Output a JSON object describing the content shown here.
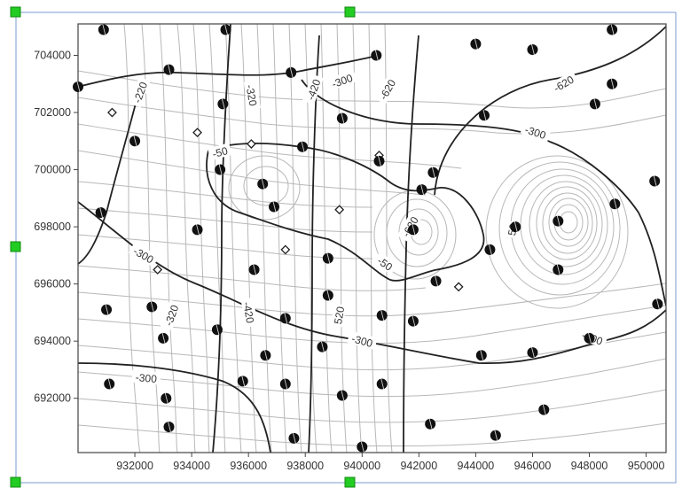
{
  "chart_data": {
    "type": "contour",
    "title": "",
    "xlabel": "",
    "ylabel": "",
    "xlim": [
      930000,
      950700
    ],
    "ylim": [
      690100,
      705100
    ],
    "x_ticks": [
      {
        "value": 932000,
        "label": "932000"
      },
      {
        "value": 934000,
        "label": "934000"
      },
      {
        "value": 936000,
        "label": "936000"
      },
      {
        "value": 938000,
        "label": "938000"
      },
      {
        "value": 940000,
        "label": "940000"
      },
      {
        "value": 942000,
        "label": "942000"
      },
      {
        "value": 944000,
        "label": "944000"
      },
      {
        "value": 946000,
        "label": "946000"
      },
      {
        "value": 948000,
        "label": "948000"
      },
      {
        "value": 950000,
        "label": "950000"
      }
    ],
    "y_ticks": [
      {
        "value": 692000,
        "label": "692000"
      },
      {
        "value": 694000,
        "label": "694000"
      },
      {
        "value": 696000,
        "label": "696000"
      },
      {
        "value": 698000,
        "label": "698000"
      },
      {
        "value": 700000,
        "label": "700000"
      },
      {
        "value": 702000,
        "label": "702000"
      },
      {
        "value": 704000,
        "label": "704000"
      }
    ],
    "contour_labels": [
      {
        "text": "-220",
        "x": 932200,
        "y": 702700,
        "angle": -70
      },
      {
        "text": "-320",
        "x": 936100,
        "y": 702600,
        "angle": 80
      },
      {
        "text": "-420",
        "x": 938300,
        "y": 702800,
        "angle": -70
      },
      {
        "text": "-300",
        "x": 939300,
        "y": 703100,
        "angle": -20
      },
      {
        "text": "-620",
        "x": 940900,
        "y": 702800,
        "angle": -60
      },
      {
        "text": "-620",
        "x": 947100,
        "y": 703000,
        "angle": -30
      },
      {
        "text": "-300",
        "x": 946100,
        "y": 701300,
        "angle": 18
      },
      {
        "text": "-50",
        "x": 935000,
        "y": 700600,
        "angle": -15
      },
      {
        "text": "-300",
        "x": 932300,
        "y": 697000,
        "angle": 30
      },
      {
        "text": "-320",
        "x": 933300,
        "y": 694900,
        "angle": -70
      },
      {
        "text": "-420",
        "x": 936000,
        "y": 695000,
        "angle": 80
      },
      {
        "text": "520",
        "x": 939200,
        "y": 694900,
        "angle": -80
      },
      {
        "text": "-50",
        "x": 940800,
        "y": 696700,
        "angle": 35
      },
      {
        "text": "-620",
        "x": 941700,
        "y": 698000,
        "angle": -60
      },
      {
        "text": "-300",
        "x": 940000,
        "y": 694000,
        "angle": 15
      },
      {
        "text": "-300",
        "x": 932400,
        "y": 692700,
        "angle": 5
      },
      {
        "text": "-300",
        "x": 948100,
        "y": 694100,
        "angle": 20
      },
      {
        "text": "50",
        "x": 945300,
        "y": 697900,
        "angle": -80
      }
    ],
    "wells": [
      {
        "x": 930900,
        "y": 704900
      },
      {
        "x": 935200,
        "y": 704900
      },
      {
        "x": 933200,
        "y": 703500
      },
      {
        "x": 930000,
        "y": 702900
      },
      {
        "x": 935100,
        "y": 702300
      },
      {
        "x": 932000,
        "y": 701000
      },
      {
        "x": 937500,
        "y": 703400
      },
      {
        "x": 939300,
        "y": 701800
      },
      {
        "x": 940500,
        "y": 704000
      },
      {
        "x": 944000,
        "y": 704400
      },
      {
        "x": 946000,
        "y": 704200
      },
      {
        "x": 948800,
        "y": 704900
      },
      {
        "x": 944300,
        "y": 701900
      },
      {
        "x": 948200,
        "y": 702300
      },
      {
        "x": 948800,
        "y": 703000
      },
      {
        "x": 935000,
        "y": 700000
      },
      {
        "x": 937900,
        "y": 700800
      },
      {
        "x": 936500,
        "y": 699500
      },
      {
        "x": 936900,
        "y": 698700
      },
      {
        "x": 940600,
        "y": 700300
      },
      {
        "x": 942100,
        "y": 699300
      },
      {
        "x": 942500,
        "y": 699900
      },
      {
        "x": 930800,
        "y": 698500
      },
      {
        "x": 934200,
        "y": 697900
      },
      {
        "x": 941800,
        "y": 697900
      },
      {
        "x": 944500,
        "y": 697200
      },
      {
        "x": 945400,
        "y": 698000
      },
      {
        "x": 946900,
        "y": 698200
      },
      {
        "x": 948900,
        "y": 698800
      },
      {
        "x": 950300,
        "y": 699600
      },
      {
        "x": 936200,
        "y": 696500
      },
      {
        "x": 938800,
        "y": 696900
      },
      {
        "x": 938800,
        "y": 695600
      },
      {
        "x": 940700,
        "y": 694900
      },
      {
        "x": 941800,
        "y": 694700
      },
      {
        "x": 942600,
        "y": 696100
      },
      {
        "x": 946900,
        "y": 696500
      },
      {
        "x": 931000,
        "y": 695100
      },
      {
        "x": 932600,
        "y": 695200
      },
      {
        "x": 933000,
        "y": 694100
      },
      {
        "x": 934900,
        "y": 694400
      },
      {
        "x": 937300,
        "y": 694800
      },
      {
        "x": 938600,
        "y": 693800
      },
      {
        "x": 944200,
        "y": 693500
      },
      {
        "x": 946000,
        "y": 693600
      },
      {
        "x": 948000,
        "y": 694100
      },
      {
        "x": 950400,
        "y": 695300
      },
      {
        "x": 931100,
        "y": 692500
      },
      {
        "x": 933100,
        "y": 692000
      },
      {
        "x": 936600,
        "y": 693500
      },
      {
        "x": 935800,
        "y": 692600
      },
      {
        "x": 937300,
        "y": 692500
      },
      {
        "x": 939300,
        "y": 692100
      },
      {
        "x": 940700,
        "y": 692500
      },
      {
        "x": 933200,
        "y": 691000
      },
      {
        "x": 942400,
        "y": 691100
      },
      {
        "x": 944700,
        "y": 690700
      },
      {
        "x": 946400,
        "y": 691600
      },
      {
        "x": 937600,
        "y": 690600
      },
      {
        "x": 940000,
        "y": 690300
      }
    ],
    "diamond_markers": [
      {
        "x": 931200,
        "y": 702000
      },
      {
        "x": 934200,
        "y": 701300
      },
      {
        "x": 936100,
        "y": 700900
      },
      {
        "x": 940600,
        "y": 700500
      },
      {
        "x": 939200,
        "y": 698600
      },
      {
        "x": 937300,
        "y": 697200
      },
      {
        "x": 932800,
        "y": 696500
      },
      {
        "x": 943400,
        "y": 695900
      }
    ],
    "grid": false,
    "legend": "none",
    "colors": {
      "background": "#ffffff",
      "plot_border": "#444444",
      "major_contour": "#222222",
      "minor_contour": "#b8b8b8",
      "well_marker": "#111111",
      "selection_frame": "#7a9bd0",
      "selection_handle": "#22cc22"
    }
  }
}
